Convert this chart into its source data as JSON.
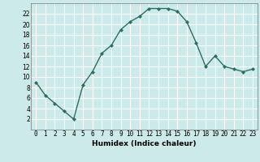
{
  "x": [
    0,
    1,
    2,
    3,
    4,
    5,
    6,
    7,
    8,
    9,
    10,
    11,
    12,
    13,
    14,
    15,
    16,
    17,
    18,
    19,
    20,
    21,
    22,
    23
  ],
  "y": [
    9,
    6.5,
    5,
    3.5,
    2,
    8.5,
    11,
    14.5,
    16,
    19,
    20.5,
    21.5,
    23,
    23,
    23,
    22.5,
    20.5,
    16.5,
    12,
    14,
    12,
    11.5,
    11,
    11.5
  ],
  "line_color": "#2e6e5e",
  "marker": "D",
  "marker_size": 2,
  "linewidth": 1.0,
  "xlabel": "Humidex (Indice chaleur)",
  "xlim": [
    -0.5,
    23.5
  ],
  "ylim": [
    0,
    24
  ],
  "yticks": [
    2,
    4,
    6,
    8,
    10,
    12,
    14,
    16,
    18,
    20,
    22
  ],
  "bg_color": "#cceaea",
  "grid_color": "#ffffff",
  "tick_fontsize": 5.5,
  "xlabel_fontsize": 6.5
}
